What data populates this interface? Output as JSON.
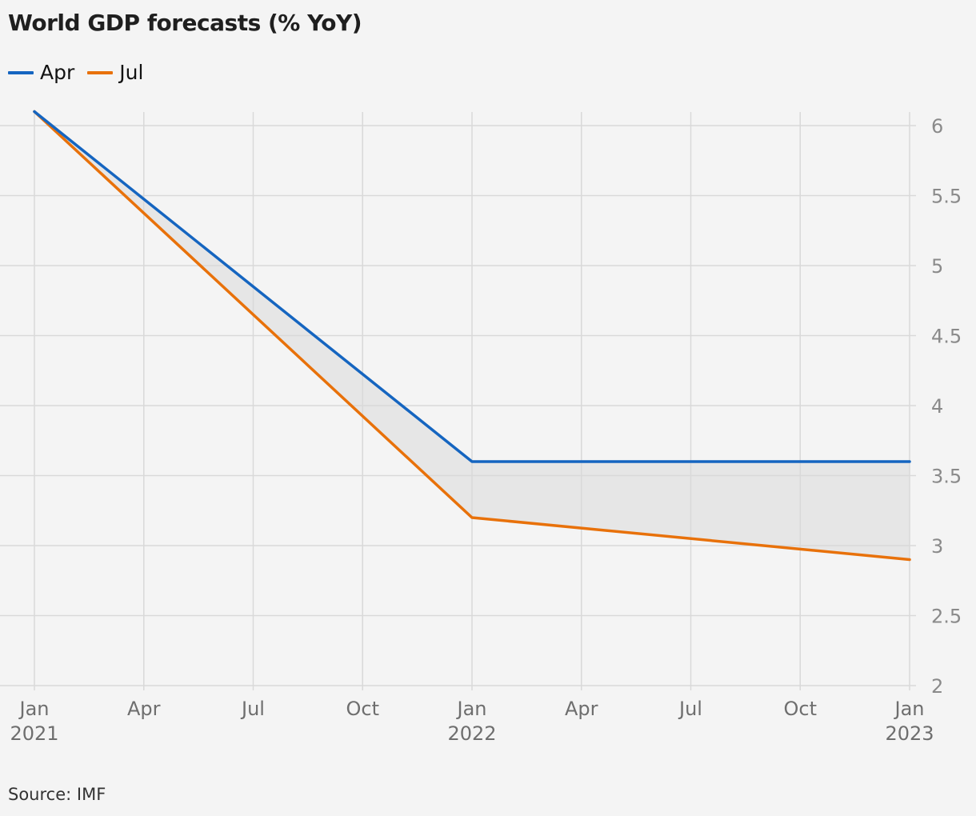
{
  "title": "World GDP forecasts (% YoY)",
  "source": "Source: IMF",
  "legend": [
    {
      "label": "Apr",
      "color": "#1565c0"
    },
    {
      "label": "Jul",
      "color": "#e8710a"
    }
  ],
  "chart_data": {
    "type": "line",
    "title": "World GDP forecasts (% YoY)",
    "x": [
      "2021-01",
      "2022-01",
      "2023-01"
    ],
    "series": [
      {
        "name": "Apr",
        "color": "#1565c0",
        "values": [
          6.1,
          3.6,
          3.6
        ]
      },
      {
        "name": "Jul",
        "color": "#e8710a",
        "values": [
          6.1,
          3.2,
          2.9
        ]
      }
    ],
    "shaded_between_series": true,
    "shade_color": "#e6e6e6",
    "ylim": [
      2,
      6
    ],
    "yticks": [
      "2",
      "2.5",
      "3",
      "3.5",
      "4",
      "4.5",
      "5",
      "5.5",
      "6"
    ],
    "xticks": [
      {
        "x": "2021-01",
        "line1": "Jan",
        "line2": "2021"
      },
      {
        "x": "2021-04",
        "line1": "Apr",
        "line2": ""
      },
      {
        "x": "2021-07",
        "line1": "Jul",
        "line2": ""
      },
      {
        "x": "2021-10",
        "line1": "Oct",
        "line2": ""
      },
      {
        "x": "2022-01",
        "line1": "Jan",
        "line2": "2022"
      },
      {
        "x": "2022-04",
        "line1": "Apr",
        "line2": ""
      },
      {
        "x": "2022-07",
        "line1": "Jul",
        "line2": ""
      },
      {
        "x": "2022-10",
        "line1": "Oct",
        "line2": ""
      },
      {
        "x": "2023-01",
        "line1": "Jan",
        "line2": "2023"
      }
    ],
    "y_axis_side": "right",
    "grid": true,
    "legend_position": "top-left",
    "xlabel": "",
    "ylabel": ""
  }
}
